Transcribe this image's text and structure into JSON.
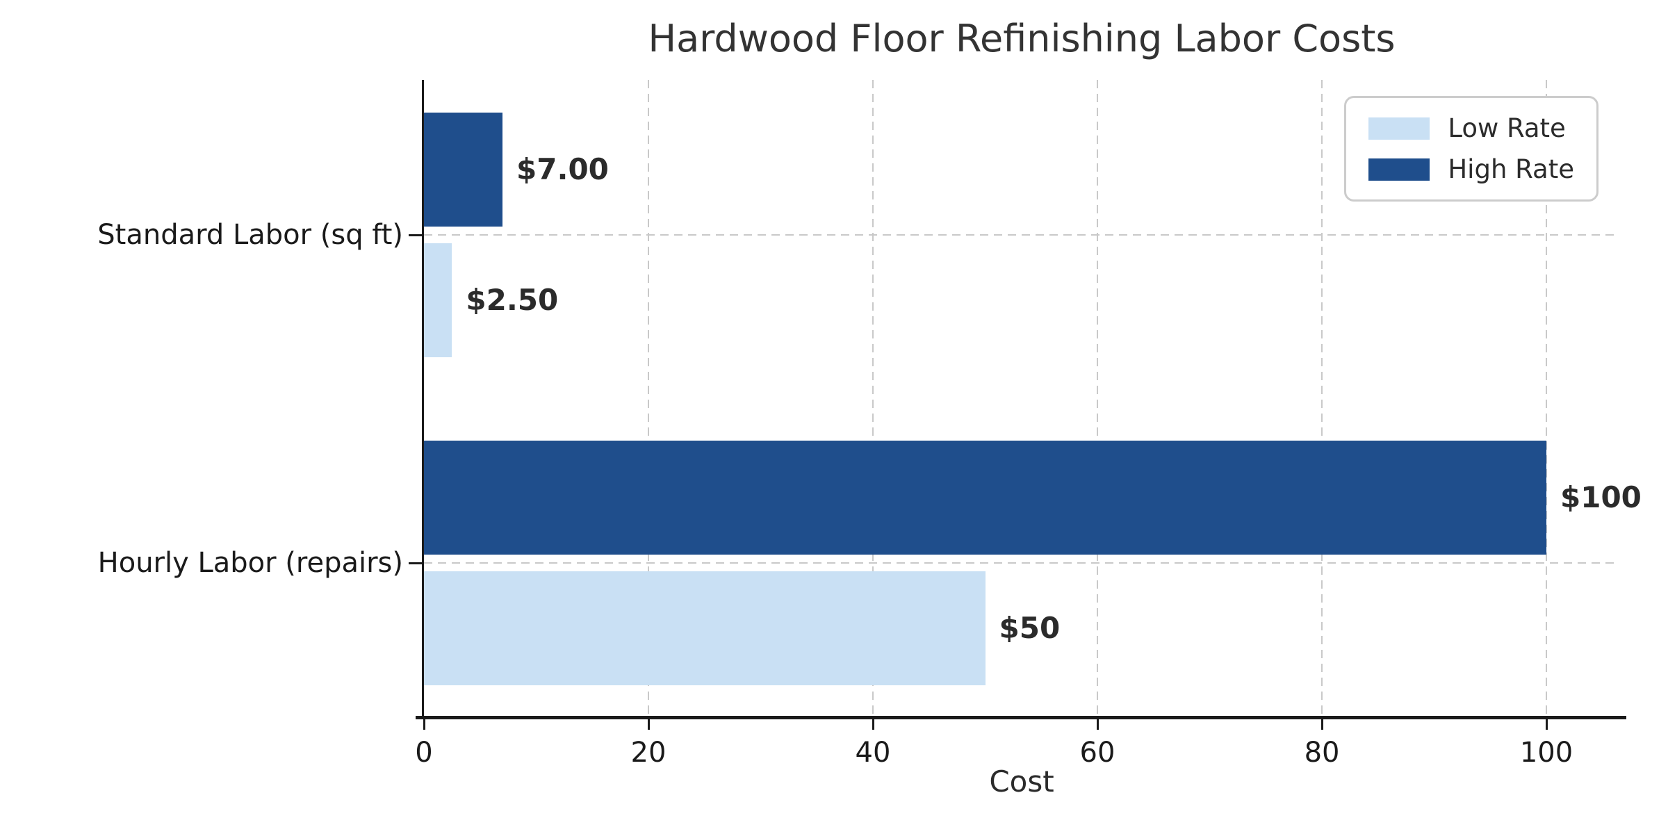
{
  "chart_data": {
    "type": "bar",
    "orientation": "horizontal",
    "title": "Hardwood Floor Refinishing Labor Costs",
    "xlabel": "Cost",
    "ylabel": "",
    "categories": [
      "Standard Labor (sq ft)",
      "Hourly Labor (repairs)"
    ],
    "series": [
      {
        "name": "Low Rate",
        "color": "#c9e0f4",
        "values": [
          2.5,
          50
        ],
        "value_labels": [
          "$2.50",
          "$50"
        ]
      },
      {
        "name": "High Rate",
        "color": "#1f4e8c",
        "values": [
          7,
          100
        ],
        "value_labels": [
          "$7.00",
          "$100"
        ]
      }
    ],
    "xticks": [
      0,
      20,
      40,
      60,
      80,
      100
    ],
    "xtick_labels": [
      "0",
      "20",
      "40",
      "60",
      "80",
      "100"
    ],
    "xlim": [
      0,
      106.5
    ],
    "grid": {
      "style": "dashed",
      "color": "#c9c9c9",
      "x": true,
      "y": true
    },
    "legend": {
      "position": "upper right",
      "entries": [
        "Low Rate",
        "High Rate"
      ]
    },
    "colors": {
      "text": "#2b2b2b",
      "axis": "#1a1a1a",
      "grid": "#c9c9c9",
      "legend_border": "#cccccc"
    }
  }
}
